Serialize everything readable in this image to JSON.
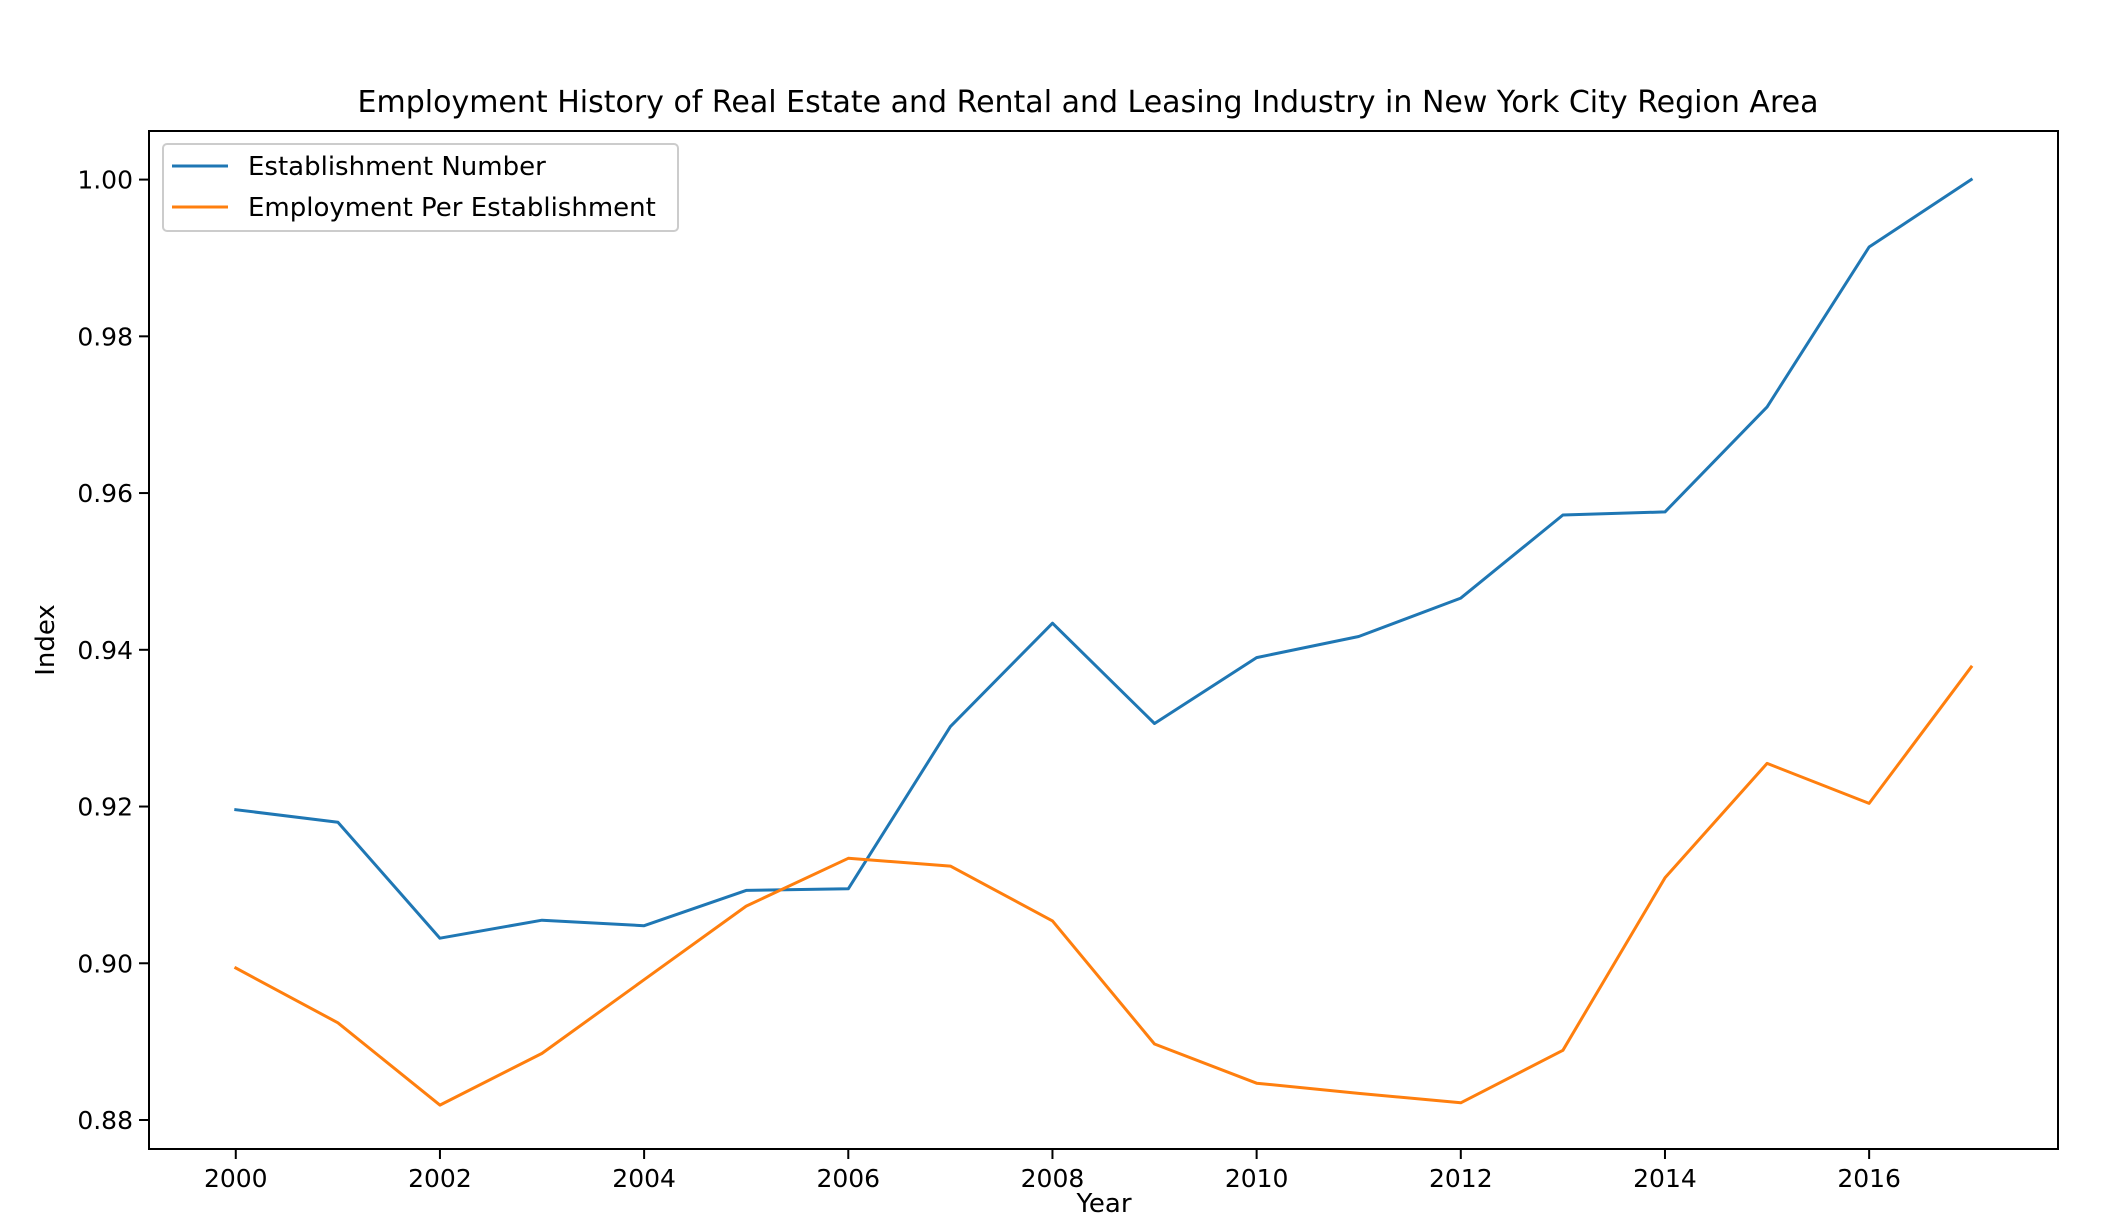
{
  "chart_data": {
    "type": "line",
    "title": "Employment History of Real Estate and Rental and Leasing Industry in New York City Region Area",
    "xlabel": "Year",
    "ylabel": "Index",
    "x": [
      2000,
      2001,
      2002,
      2003,
      2004,
      2005,
      2006,
      2007,
      2008,
      2009,
      2010,
      2011,
      2012,
      2013,
      2014,
      2015,
      2016,
      2017
    ],
    "xlim": [
      1999.15,
      2017.85
    ],
    "ylim": [
      0.8763,
      1.0062
    ],
    "x_ticks": [
      2000,
      2002,
      2004,
      2006,
      2008,
      2010,
      2012,
      2014,
      2016
    ],
    "x_tick_labels": [
      "2000",
      "2002",
      "2004",
      "2006",
      "2008",
      "2010",
      "2012",
      "2014",
      "2016"
    ],
    "y_ticks": [
      0.88,
      0.9,
      0.92,
      0.94,
      0.96,
      0.98,
      1.0
    ],
    "y_tick_labels": [
      "0.88",
      "0.90",
      "0.92",
      "0.94",
      "0.96",
      "0.98",
      "1.00"
    ],
    "grid": false,
    "legend_position": "upper-left",
    "series": [
      {
        "name": "Establishment Number",
        "color": "#1f77b4",
        "values": [
          0.9196,
          0.918,
          0.9032,
          0.9055,
          0.9048,
          0.9093,
          0.9095,
          0.9302,
          0.9434,
          0.9306,
          0.939,
          0.9417,
          0.9466,
          0.9572,
          0.9576,
          0.971,
          0.9914,
          1.0
        ]
      },
      {
        "name": "Employment Per Establishment",
        "color": "#ff7f0e",
        "values": [
          0.8994,
          0.8924,
          0.8819,
          0.8885,
          0.8979,
          0.9073,
          0.9134,
          0.9124,
          0.9054,
          0.8897,
          0.8847,
          0.8834,
          0.8822,
          0.8889,
          0.9109,
          0.9255,
          0.9204,
          0.9378
        ]
      }
    ]
  }
}
